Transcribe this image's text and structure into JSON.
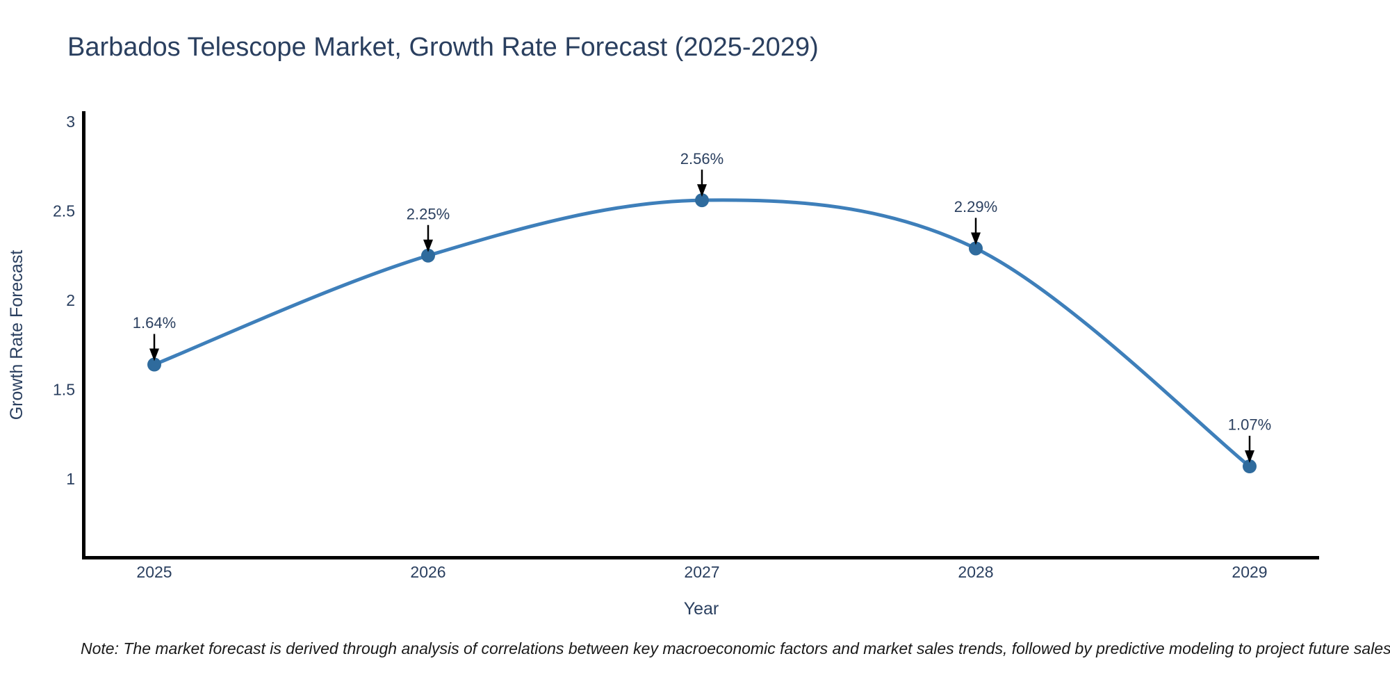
{
  "title": "Barbados Telescope Market, Growth Rate Forecast (2025-2029)",
  "note": "Note: The market forecast is derived through analysis of correlations between key macroeconomic factors and market sales trends, followed by predictive modeling to project future sales",
  "chart_data": {
    "type": "line",
    "title": "Barbados Telescope Market, Growth Rate Forecast (2025-2029)",
    "xlabel": "Year",
    "ylabel": "Growth Rate Forecast",
    "x": [
      2025,
      2026,
      2027,
      2028,
      2029
    ],
    "values": [
      1.64,
      2.25,
      2.56,
      2.29,
      1.07
    ],
    "point_labels": [
      "1.64%",
      "2.25%",
      "2.56%",
      "2.29%",
      "1.07%"
    ],
    "yticks": [
      1,
      1.5,
      2,
      2.5,
      3
    ],
    "xticks": [
      "2025",
      "2026",
      "2027",
      "2028",
      "2029"
    ],
    "ylim": [
      0.56,
      3.05
    ],
    "line_shape": "spline",
    "grid": false,
    "legend_position": "none",
    "line_color": "#3e7fba",
    "marker_color": "#2f6b9d",
    "arrow_color": "#000000",
    "annotation_text_color": "#2a3f5f"
  },
  "colors": {
    "title_text": "#2a3f5f",
    "tick_text": "#2a3f5f",
    "axis_title_text": "#2a3f5f",
    "axis_line": "#000000",
    "background": "#ffffff"
  }
}
